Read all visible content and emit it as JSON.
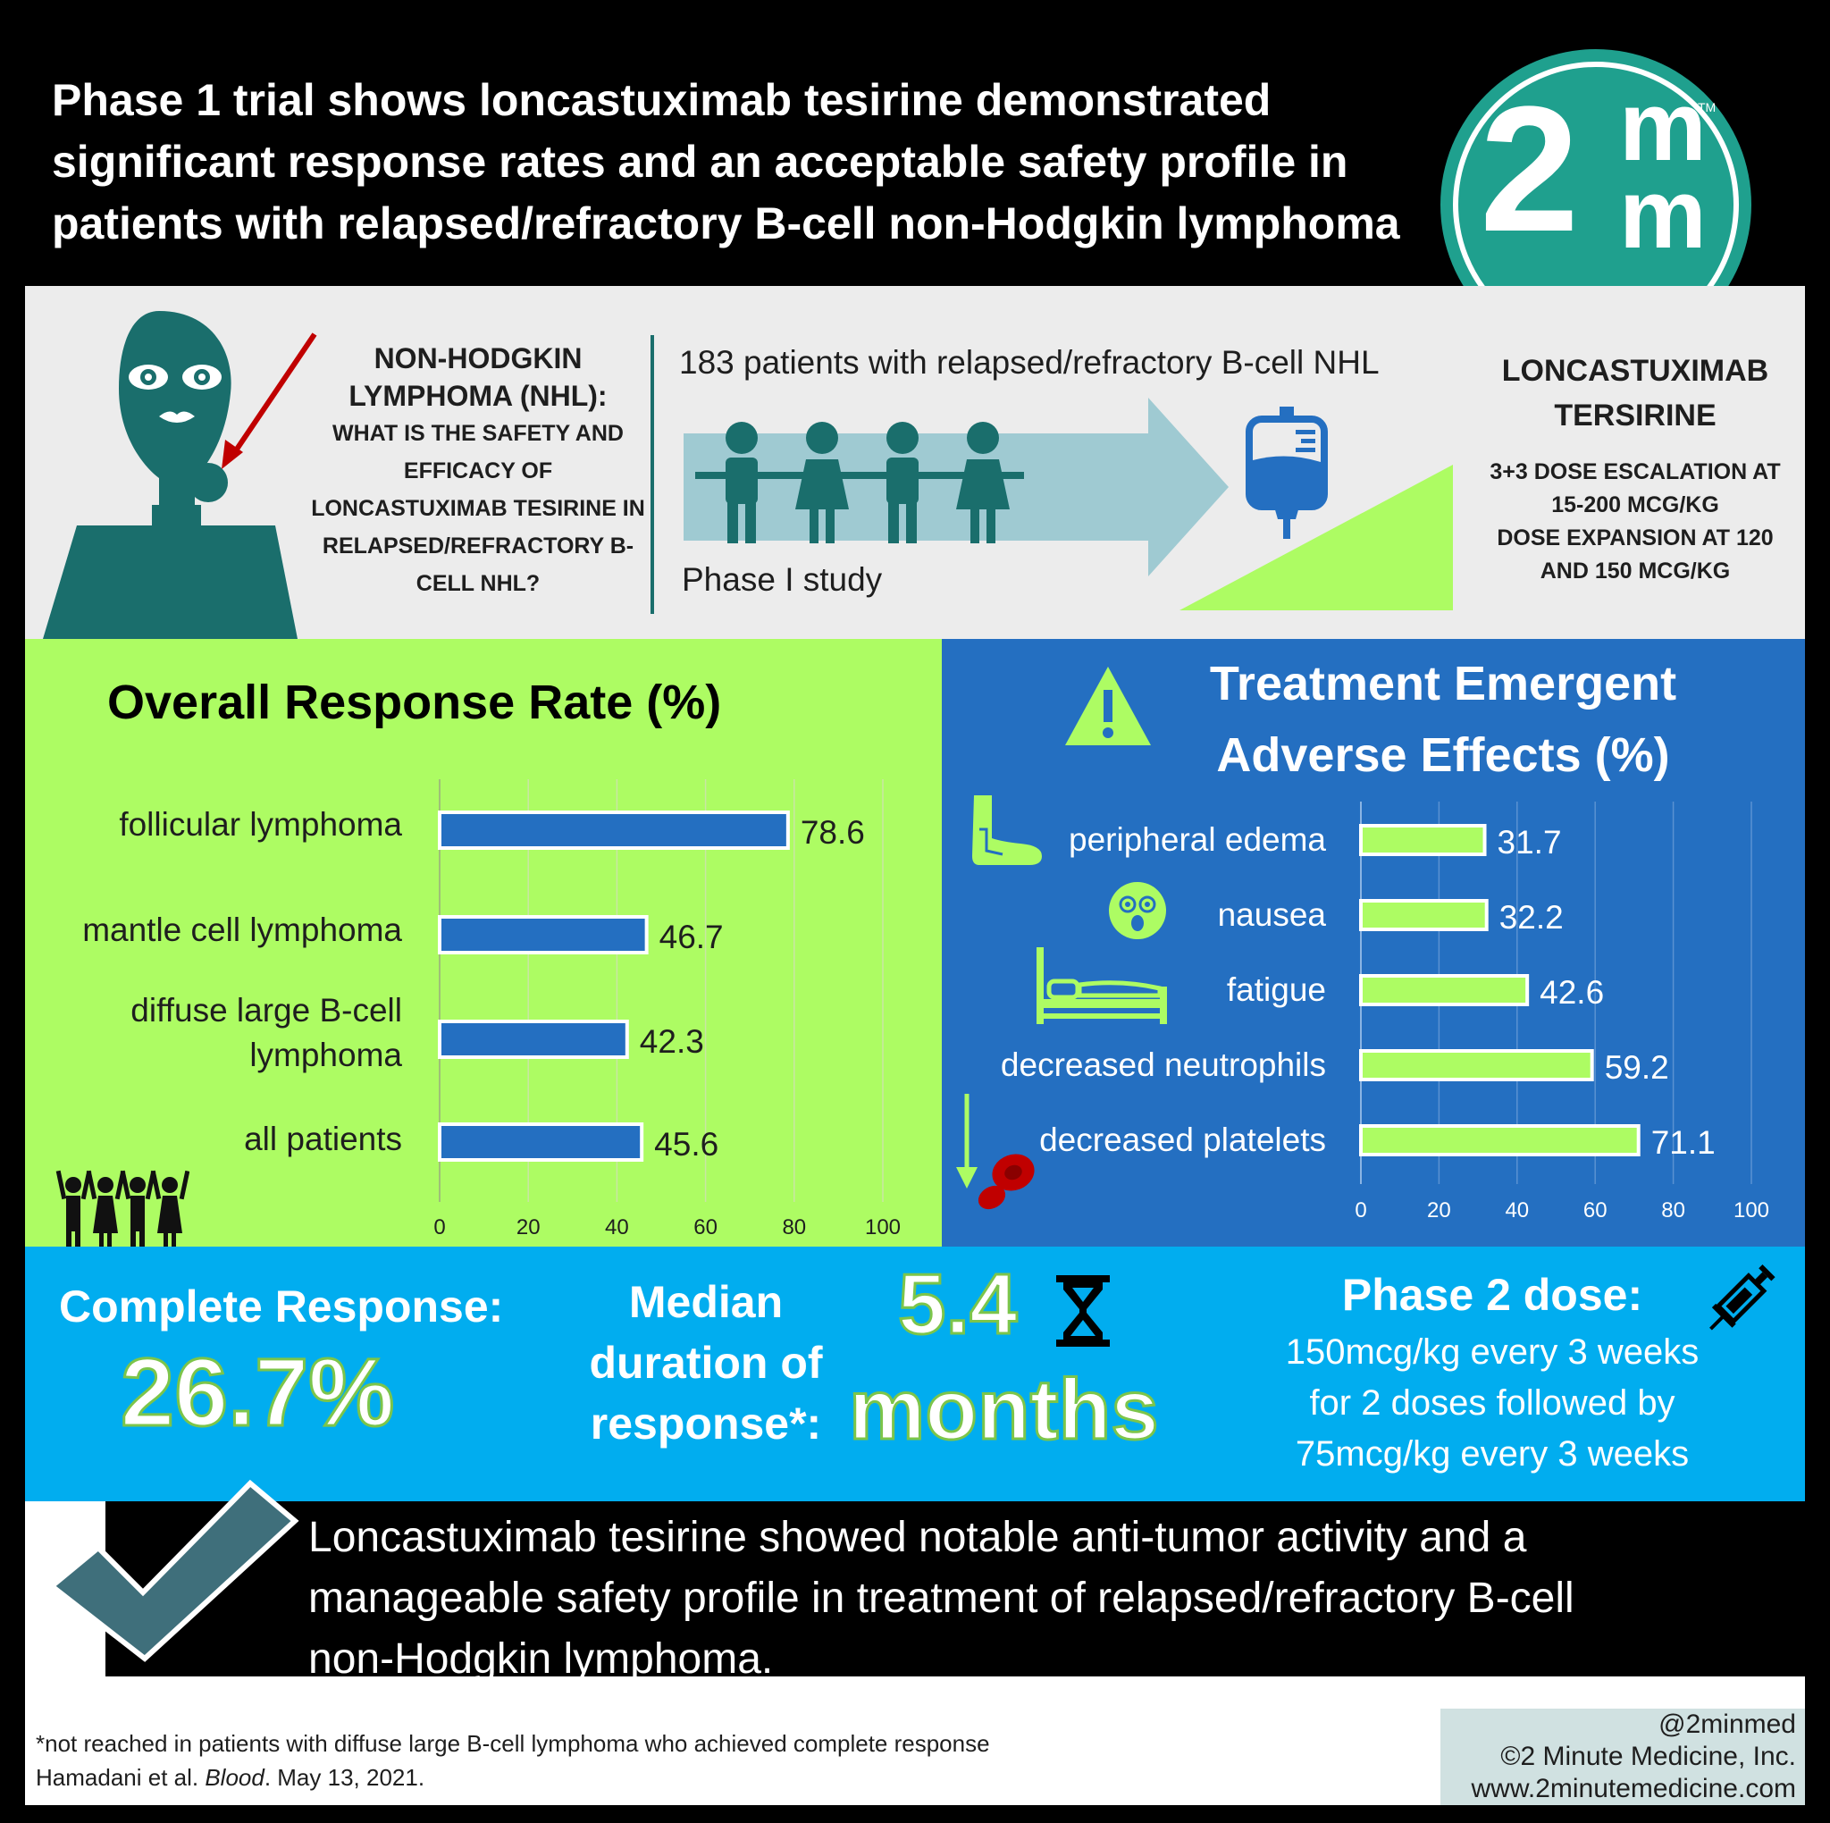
{
  "header": {
    "title_lines": [
      "Phase 1 trial shows loncastuximab tesirine demonstrated",
      "significant response rates and an acceptable safety profile in",
      "patients with relapsed/refractory B-cell non-Hodgkin lymphoma"
    ],
    "logo": {
      "big": "2",
      "top": "m",
      "bottom": "m",
      "tm": "TM"
    }
  },
  "question": {
    "title_lines": [
      "NON-HODGKIN",
      "LYMPHOMA (NHL):"
    ],
    "sub_lines": [
      "WHAT IS THE SAFETY AND",
      "EFFICACY OF",
      "LONCASTUXIMAB TESIRINE IN",
      "RELAPSED/REFRACTORY B-",
      "CELL NHL?"
    ]
  },
  "study": {
    "patients": "183 patients with relapsed/refractory B-cell NHL",
    "phase": "Phase I study",
    "drug_lines": [
      "LONCASTUXIMAB",
      "TERSIRINE"
    ],
    "dose_lines": [
      "3+3 DOSE ESCALATION AT",
      "15-200 MCG/KG",
      "DOSE EXPANSION AT 120",
      "AND 150 MCG/KG"
    ]
  },
  "orr": {
    "title": "Overall Response Rate (%)"
  },
  "tae": {
    "title_lines": [
      "Treatment Emergent",
      "Adverse Effects (%)"
    ]
  },
  "chart_data": [
    {
      "type": "bar",
      "title": "Overall Response Rate (%)",
      "categories": [
        "follicular lymphoma",
        "mantle cell lymphoma",
        "diffuse large B-cell lymphoma",
        "all patients"
      ],
      "label_lines": [
        [
          "follicular lymphoma"
        ],
        [
          "mantle cell lymphoma"
        ],
        [
          "diffuse large B-cell",
          "lymphoma"
        ],
        [
          "all patients"
        ]
      ],
      "values": [
        78.6,
        46.7,
        42.3,
        45.6
      ],
      "value_labels": [
        "78.6",
        "46.7",
        "42.3",
        "45.6"
      ],
      "xlim": [
        0,
        100
      ],
      "xticks": [
        "0",
        "20",
        "40",
        "60",
        "80",
        "100"
      ],
      "orientation": "horizontal",
      "bar_color": "#246fc1"
    },
    {
      "type": "bar",
      "title": "Treatment Emergent Adverse Effects (%)",
      "categories": [
        "peripheral edema",
        "nausea",
        "fatigue",
        "decreased neutrophils",
        "decreased platelets"
      ],
      "values": [
        31.7,
        32.2,
        42.6,
        59.2,
        71.1
      ],
      "value_labels": [
        "31.7",
        "32.2",
        "42.6",
        "59.2",
        "71.1"
      ],
      "xlim": [
        0,
        100
      ],
      "xticks": [
        "0",
        "20",
        "40",
        "60",
        "80",
        "100"
      ],
      "orientation": "horizontal",
      "bar_color": "#adfc63"
    }
  ],
  "outcomes": {
    "cr_label": "Complete Response:",
    "cr_value": "26.7%",
    "median_lines": [
      "Median",
      "duration of",
      "response*:"
    ],
    "duration_number": "5.4",
    "duration_unit": "months",
    "phase2_title": "Phase 2 dose:",
    "phase2_lines": [
      "150mcg/kg every 3 weeks",
      "for 2 doses followed by",
      "75mcg/kg every 3 weeks"
    ]
  },
  "conclusion": {
    "lines": [
      "Loncastuximab tesirine showed notable anti-tumor activity and a",
      "manageable safety profile in treatment of relapsed/refractory B-cell",
      "non-Hodgkin lymphoma."
    ]
  },
  "footer": {
    "footnote": "*not reached in patients with diffuse large B-cell lymphoma who achieved complete response",
    "citation_authors": "Hamadani et al. ",
    "citation_journal": "Blood",
    "citation_date": ". May 13, 2021.",
    "handle": "@2minmed",
    "copyright": "©2 Minute Medicine, Inc.",
    "website": "www.2minutemedicine.com"
  },
  "colors": {
    "teal": "#1a6e6c",
    "light_teal": "#9fcad2",
    "lime": "#adfc63",
    "blue": "#246fc1",
    "sky": "#01adef",
    "logo_green": "#1fa08e"
  }
}
